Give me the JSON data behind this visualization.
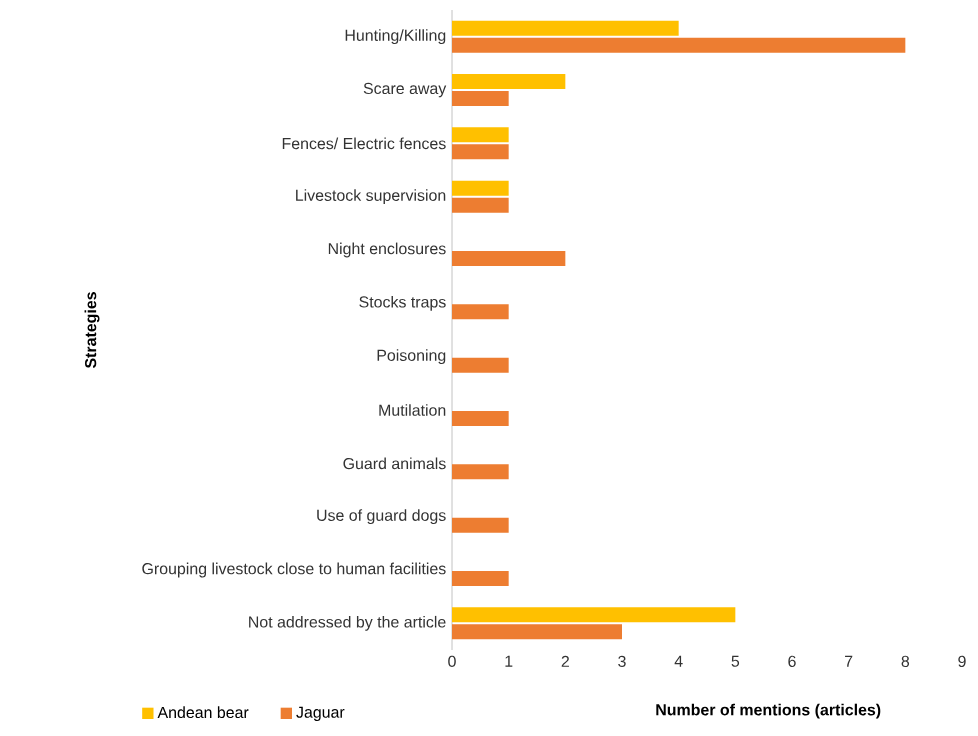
{
  "chart_data": {
    "type": "bar",
    "orientation": "horizontal",
    "xlabel": "Number of mentions (articles)",
    "ylabel": "Strategies",
    "categories": [
      "Hunting/Killing",
      "Scare away",
      "Fences/ Electric fences",
      "Livestock supervision",
      "Night enclosures",
      "Stocks traps",
      "Poisoning",
      "Mutilation",
      "Guard animals",
      "Use of guard dogs",
      "Grouping livestock close to human facilities",
      "Not addressed by the article"
    ],
    "series": [
      {
        "name": "Andean bear",
        "color": "#ffc000",
        "values": [
          4,
          2,
          1,
          1,
          0,
          0,
          0,
          0,
          0,
          0,
          0,
          5
        ]
      },
      {
        "name": "Jaguar",
        "color": "#ed7d31",
        "values": [
          8,
          1,
          1,
          1,
          2,
          1,
          1,
          1,
          1,
          1,
          1,
          3
        ]
      }
    ],
    "xlim": [
      0,
      9
    ],
    "xticks": [
      0,
      1,
      2,
      3,
      4,
      5,
      6,
      7,
      8,
      9
    ],
    "grid": false,
    "legend": "bottom left"
  }
}
